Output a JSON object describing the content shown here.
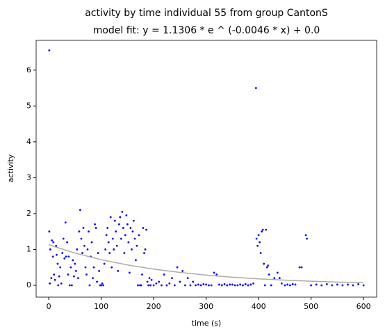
{
  "chart_data": {
    "type": "scatter",
    "title": "activity by time individual 55 from group CantonS",
    "subtitle": "model fit: y = 1.1306 * e ^ (-0.0046 * x) + 0.0",
    "x_label": "time (s)",
    "y_label": "activity",
    "xlim": [
      -24,
      625
    ],
    "ylim": [
      -0.33,
      6.83
    ],
    "xticks": [
      0,
      100,
      200,
      300,
      400,
      500,
      600
    ],
    "yticks": [
      0,
      1,
      2,
      3,
      4,
      5,
      6
    ],
    "series": [
      {
        "mode": "markers",
        "color": "#0000ff",
        "x": [
          1,
          1,
          2,
          3,
          5,
          6,
          8,
          9,
          10,
          12,
          14,
          15,
          17,
          18,
          20,
          22,
          24,
          26,
          28,
          30,
          32,
          33,
          35,
          37,
          38,
          40,
          42,
          44,
          46,
          48,
          50,
          52,
          54,
          56,
          58,
          60,
          62,
          64,
          66,
          68,
          70,
          72,
          74,
          76,
          78,
          80,
          82,
          84,
          86,
          88,
          90,
          92,
          94,
          96,
          98,
          100,
          102,
          104,
          106,
          108,
          110,
          112,
          114,
          116,
          118,
          120,
          122,
          124,
          126,
          128,
          130,
          132,
          134,
          136,
          138,
          140,
          142,
          144,
          146,
          148,
          150,
          152,
          154,
          156,
          158,
          160,
          162,
          164,
          166,
          168,
          170,
          172,
          174,
          176,
          178,
          180,
          182,
          184,
          186,
          188,
          190,
          192,
          194,
          196,
          200,
          205,
          210,
          215,
          220,
          225,
          230,
          235,
          240,
          245,
          250,
          255,
          260,
          265,
          270,
          275,
          280,
          285,
          290,
          295,
          300,
          305,
          310,
          315,
          320,
          325,
          330,
          335,
          340,
          345,
          350,
          355,
          360,
          365,
          370,
          375,
          380,
          385,
          390,
          395,
          396,
          398,
          400,
          402,
          404,
          406,
          408,
          410,
          412,
          414,
          416,
          418,
          420,
          424,
          430,
          436,
          440,
          444,
          450,
          455,
          460,
          465,
          470,
          478,
          482,
          490,
          492,
          500,
          510,
          520,
          530,
          540,
          550,
          560,
          570,
          580,
          590,
          600
        ],
        "values": [
          6.55,
          1.5,
          0.05,
          1.0,
          0.2,
          1.25,
          0.8,
          1.2,
          0.3,
          0.15,
          1.1,
          0.85,
          0.6,
          0.0,
          0.25,
          0.5,
          0.05,
          0.9,
          1.3,
          0.75,
          1.75,
          0.8,
          1.2,
          0.3,
          0.8,
          0.0,
          0.5,
          0.0,
          0.7,
          0.25,
          0.6,
          0.4,
          1.0,
          0.2,
          1.5,
          2.1,
          1.3,
          0.9,
          1.6,
          1.1,
          0.5,
          0.3,
          1.0,
          1.5,
          0.0,
          0.8,
          1.2,
          0.2,
          0.5,
          1.7,
          1.6,
          0.1,
          0.9,
          0.4,
          0.0,
          0.0,
          0.05,
          0.0,
          0.6,
          1.0,
          1.4,
          1.6,
          1.2,
          0.9,
          1.9,
          0.5,
          1.3,
          1.0,
          1.8,
          1.5,
          1.1,
          0.4,
          1.7,
          1.9,
          1.3,
          2.05,
          1.6,
          0.9,
          1.4,
          1.95,
          1.7,
          1.2,
          0.35,
          1.6,
          1.0,
          1.5,
          1.8,
          1.3,
          0.7,
          1.1,
          0.0,
          1.4,
          0.0,
          0.0,
          0.3,
          1.6,
          0.9,
          1.0,
          1.55,
          0.1,
          0.0,
          0.2,
          0.0,
          0.15,
          0.0,
          0.05,
          0.1,
          0.0,
          0.3,
          0.0,
          0.05,
          0.2,
          0.0,
          0.5,
          0.1,
          0.4,
          0.0,
          0.2,
          0.0,
          0.1,
          0.0,
          0.02,
          0.0,
          0.03,
          0.02,
          0.0,
          0.0,
          0.35,
          0.3,
          0.02,
          0.0,
          0.03,
          0.0,
          0.02,
          0.02,
          0.0,
          0.0,
          0.02,
          0.0,
          0.03,
          0.0,
          0.02,
          0.05,
          5.5,
          1.3,
          1.1,
          1.4,
          1.2,
          0.9,
          1.5,
          1.55,
          0.6,
          0.0,
          1.55,
          0.5,
          0.55,
          0.3,
          0.0,
          0.2,
          0.35,
          0.2,
          0.05,
          0.0,
          0.02,
          0.0,
          0.03,
          0.02,
          0.5,
          0.5,
          1.4,
          1.3,
          0.0,
          0.02,
          0.0,
          0.03,
          0.0,
          0.02,
          0.0,
          0.02,
          0.0,
          0.03,
          0.0
        ]
      },
      {
        "mode": "line",
        "color": "#aaaaaa",
        "x": [
          0,
          50,
          100,
          150,
          200,
          250,
          300,
          350,
          400,
          450,
          500,
          550,
          600
        ],
        "values": [
          1.1306,
          0.898,
          0.714,
          0.567,
          0.451,
          0.358,
          0.284,
          0.226,
          0.18,
          0.143,
          0.113,
          0.09,
          0.072
        ]
      }
    ]
  }
}
